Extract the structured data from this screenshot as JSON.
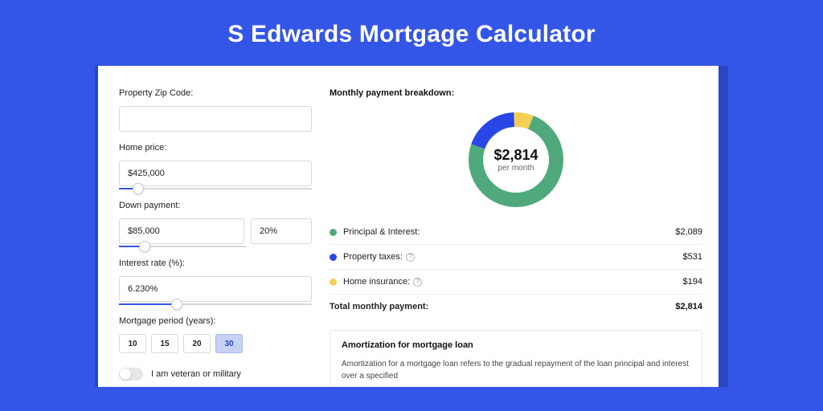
{
  "title": "S Edwards Mortgage Calculator",
  "colors": {
    "page_bg": "#3456e6",
    "frame_bg": "#2a46c5",
    "card_bg": "#ffffff",
    "slider_fill": "#3456e6",
    "period_active_bg": "#c6d1f4"
  },
  "form": {
    "zip": {
      "label": "Property Zip Code:",
      "value": ""
    },
    "home_price": {
      "label": "Home price:",
      "value": "$425,000",
      "slider_pct": 10
    },
    "down_payment": {
      "label": "Down payment:",
      "value": "$85,000",
      "percent": "20%",
      "slider_pct": 20
    },
    "interest_rate": {
      "label": "Interest rate (%):",
      "value": "6.230%",
      "slider_pct": 30
    },
    "mortgage_period": {
      "label": "Mortgage period (years):",
      "options": [
        "10",
        "15",
        "20",
        "30"
      ],
      "active_index": 3
    },
    "veteran": {
      "label": "I am veteran or military",
      "checked": false
    }
  },
  "breakdown": {
    "title": "Monthly payment breakdown:",
    "center_amount": "$2,814",
    "center_sub": "per month",
    "donut": {
      "type": "donut",
      "radius": 50,
      "stroke_width": 18,
      "bg": "#ffffff",
      "slices": [
        {
          "label": "Principal & Interest",
          "color": "#4fa97c",
          "value": 2089
        },
        {
          "label": "Property taxes",
          "color": "#2a46e6",
          "value": 531
        },
        {
          "label": "Home insurance",
          "color": "#f3cf55",
          "value": 194
        }
      ]
    },
    "rows": [
      {
        "dot": "#4fa97c",
        "label": "Principal & Interest:",
        "help": false,
        "value": "$2,089"
      },
      {
        "dot": "#2a46e6",
        "label": "Property taxes:",
        "help": true,
        "value": "$531"
      },
      {
        "dot": "#f3cf55",
        "label": "Home insurance:",
        "help": true,
        "value": "$194"
      }
    ],
    "total": {
      "label": "Total monthly payment:",
      "value": "$2,814"
    }
  },
  "amortization": {
    "title": "Amortization for mortgage loan",
    "text": "Amortization for a mortgage loan refers to the gradual repayment of the loan principal and interest over a specified"
  }
}
